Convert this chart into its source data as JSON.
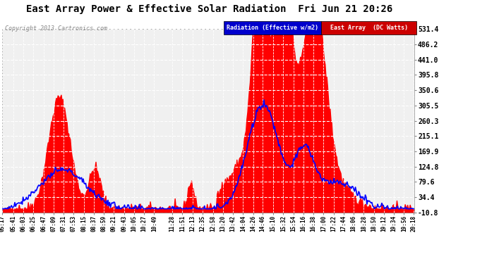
{
  "title": "East Array Power & Effective Solar Radiation  Fri Jun 21 20:26",
  "copyright": "Copyright 2013 Cartronics.com",
  "legend_radiation": "Radiation (Effective w/m2)",
  "legend_east": "East Array  (DC Watts)",
  "legend_radiation_bg": "#0000cc",
  "legend_east_bg": "#cc0000",
  "bg_color": "#ffffff",
  "plot_bg_color": "#f0f0f0",
  "grid_color": "#cccccc",
  "fill_color": "#ff0000",
  "line_color": "#0000ff",
  "ylim_min": -10.8,
  "ylim_max": 531.4,
  "yticks": [
    531.4,
    486.2,
    441.0,
    395.8,
    350.6,
    305.5,
    260.3,
    215.1,
    169.9,
    124.8,
    79.6,
    34.4,
    -10.8
  ],
  "xtick_labels": [
    "05:17",
    "05:41",
    "06:03",
    "06:25",
    "06:47",
    "07:09",
    "07:31",
    "07:53",
    "08:15",
    "08:37",
    "08:59",
    "09:21",
    "09:43",
    "10:05",
    "10:27",
    "10:49",
    "11:28",
    "11:51",
    "12:13",
    "12:35",
    "12:58",
    "13:20",
    "13:42",
    "14:04",
    "14:26",
    "14:46",
    "15:10",
    "15:32",
    "15:54",
    "16:16",
    "16:38",
    "17:00",
    "17:22",
    "17:44",
    "18:06",
    "18:28",
    "18:50",
    "19:12",
    "19:34",
    "19:56",
    "20:18"
  ]
}
